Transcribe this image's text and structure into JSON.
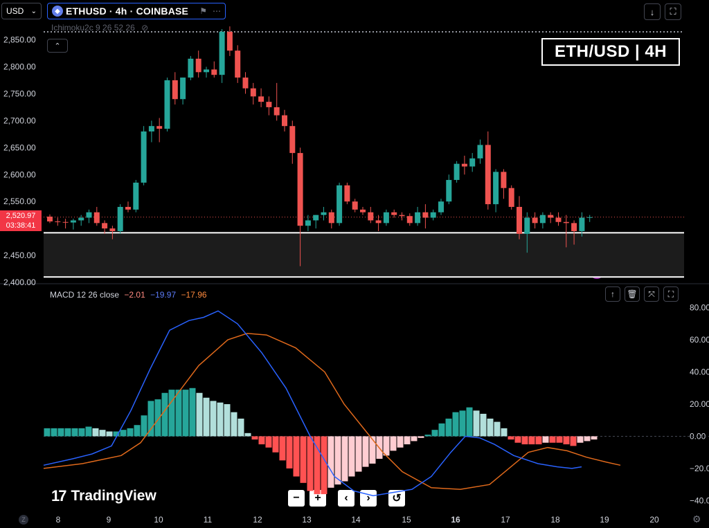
{
  "header": {
    "currency_label": "USD",
    "symbol": "ETHUSD · 4h · COINBASE",
    "indicator_label": "Ichimoku2c 9 26 52 26",
    "chart_title": "ETH/USD | 4H"
  },
  "macd_legend": {
    "name": "MACD 12 26 close",
    "hist": "−2.01",
    "macd": "−19.97",
    "signal": "−17.96"
  },
  "price_tag": {
    "value": "2,520.97",
    "countdown": "03:38:41"
  },
  "brand": "TradingView",
  "nav_buttons": [
    "−",
    "+",
    "‹",
    "›",
    "↺"
  ],
  "colors": {
    "up": "#26a69a",
    "down": "#ef5350",
    "macd_line": "#2962ff",
    "signal_line": "#e0691b",
    "hist_up_strong": "#26a69a",
    "hist_up_weak": "#b2dfdb",
    "hist_down_strong": "#ff5252",
    "hist_down_weak": "#ffcdd2"
  },
  "chart_data": [
    {
      "type": "candlestick",
      "title": "ETH/USD | 4H",
      "ylim": [
        2400,
        2870
      ],
      "y_ticks": [
        "2,850.00",
        "2,800.00",
        "2,750.00",
        "2,700.00",
        "2,650.00",
        "2,600.00",
        "2,550.00",
        "2,450.00",
        "2,400.00"
      ],
      "y_tick_values": [
        2850,
        2800,
        2750,
        2700,
        2650,
        2600,
        2550,
        2450,
        2400
      ],
      "x_labels": [
        "8",
        "9",
        "10",
        "11",
        "12",
        "13",
        "14",
        "15",
        "16",
        "17",
        "18",
        "19",
        "20"
      ],
      "support_zone": [
        2410,
        2492
      ],
      "candles": [
        [
          2522,
          2526,
          2510,
          2513
        ],
        [
          2513,
          2520,
          2505,
          2512
        ],
        [
          2512,
          2518,
          2500,
          2511
        ],
        [
          2511,
          2518,
          2498,
          2515
        ],
        [
          2515,
          2525,
          2505,
          2520
        ],
        [
          2520,
          2535,
          2510,
          2530
        ],
        [
          2530,
          2540,
          2505,
          2510
        ],
        [
          2510,
          2515,
          2490,
          2500
        ],
        [
          2500,
          2505,
          2480,
          2495
        ],
        [
          2495,
          2545,
          2490,
          2540
        ],
        [
          2540,
          2550,
          2530,
          2535
        ],
        [
          2535,
          2590,
          2530,
          2585
        ],
        [
          2585,
          2690,
          2580,
          2680
        ],
        [
          2680,
          2700,
          2660,
          2690
        ],
        [
          2690,
          2705,
          2660,
          2685
        ],
        [
          2685,
          2780,
          2680,
          2775
        ],
        [
          2775,
          2790,
          2730,
          2740
        ],
        [
          2740,
          2780,
          2730,
          2780
        ],
        [
          2780,
          2820,
          2775,
          2815
        ],
        [
          2815,
          2830,
          2780,
          2790
        ],
        [
          2790,
          2800,
          2780,
          2795
        ],
        [
          2795,
          2810,
          2780,
          2785
        ],
        [
          2785,
          2870,
          2770,
          2865
        ],
        [
          2865,
          2875,
          2820,
          2830
        ],
        [
          2830,
          2840,
          2770,
          2780
        ],
        [
          2780,
          2790,
          2750,
          2760
        ],
        [
          2760,
          2770,
          2730,
          2745
        ],
        [
          2745,
          2760,
          2725,
          2735
        ],
        [
          2735,
          2745,
          2710,
          2725
        ],
        [
          2725,
          2770,
          2700,
          2710
        ],
        [
          2710,
          2720,
          2680,
          2690
        ],
        [
          2690,
          2700,
          2620,
          2640
        ],
        [
          2640,
          2650,
          2430,
          2505
        ],
        [
          2505,
          2525,
          2495,
          2515
        ],
        [
          2515,
          2525,
          2500,
          2525
        ],
        [
          2525,
          2540,
          2515,
          2530
        ],
        [
          2530,
          2535,
          2500,
          2510
        ],
        [
          2510,
          2585,
          2505,
          2580
        ],
        [
          2580,
          2585,
          2545,
          2550
        ],
        [
          2550,
          2555,
          2530,
          2535
        ],
        [
          2535,
          2540,
          2525,
          2530
        ],
        [
          2530,
          2540,
          2510,
          2515
        ],
        [
          2515,
          2525,
          2495,
          2510
        ],
        [
          2510,
          2535,
          2505,
          2530
        ],
        [
          2530,
          2535,
          2520,
          2525
        ],
        [
          2525,
          2530,
          2515,
          2523
        ],
        [
          2523,
          2528,
          2505,
          2510
        ],
        [
          2510,
          2540,
          2505,
          2530
        ],
        [
          2530,
          2545,
          2500,
          2520
        ],
        [
          2520,
          2535,
          2515,
          2530
        ],
        [
          2530,
          2555,
          2525,
          2550
        ],
        [
          2550,
          2600,
          2545,
          2590
        ],
        [
          2590,
          2625,
          2585,
          2620
        ],
        [
          2620,
          2635,
          2600,
          2615
        ],
        [
          2615,
          2640,
          2605,
          2630
        ],
        [
          2630,
          2665,
          2620,
          2655
        ],
        [
          2655,
          2680,
          2535,
          2545
        ],
        [
          2545,
          2610,
          2530,
          2605
        ],
        [
          2605,
          2610,
          2555,
          2575
        ],
        [
          2575,
          2580,
          2535,
          2540
        ],
        [
          2540,
          2560,
          2480,
          2490
        ],
        [
          2490,
          2530,
          2455,
          2520
        ],
        [
          2520,
          2530,
          2500,
          2510
        ],
        [
          2510,
          2530,
          2500,
          2525
        ],
        [
          2525,
          2530,
          2510,
          2520
        ],
        [
          2520,
          2530,
          2505,
          2512
        ],
        [
          2512,
          2525,
          2465,
          2510
        ],
        [
          2510,
          2515,
          2470,
          2495
        ],
        [
          2495,
          2530,
          2485,
          2520
        ],
        [
          2520,
          2525,
          2512,
          2521
        ]
      ],
      "current_price": 2520.97
    },
    {
      "type": "macd",
      "title": "MACD 12 26 close",
      "ylim": [
        -45,
        82
      ],
      "y_ticks": [
        "80.00",
        "60.00",
        "40.00",
        "20.00",
        "0.00",
        "−20.00",
        "−40.00"
      ],
      "y_tick_values": [
        80,
        60,
        40,
        20,
        0,
        -20,
        -40
      ],
      "histogram": [
        5,
        5,
        5,
        5,
        5,
        5,
        6,
        5,
        4,
        3,
        3,
        4,
        5,
        7,
        13,
        22,
        23,
        27,
        29,
        29,
        29,
        30,
        27,
        24,
        22,
        21,
        20,
        15,
        11,
        2,
        -2,
        -5,
        -7,
        -10,
        -15,
        -20,
        -25,
        -29,
        -34,
        -36,
        -36,
        -32,
        -30,
        -28,
        -25,
        -22,
        -19,
        -17,
        -14,
        -12,
        -9,
        -7,
        -5,
        -3,
        -1,
        1,
        4,
        8,
        11,
        15,
        16,
        18,
        16,
        14,
        11,
        9,
        5,
        -2,
        -4,
        -5,
        -5,
        -5,
        -4,
        -4,
        -4,
        -5,
        -6,
        -4,
        -3,
        -2
      ],
      "hist_x_index_offset": 0,
      "macd_line": [
        [
          0,
          -18
        ],
        [
          6,
          -14
        ],
        [
          10,
          -11
        ],
        [
          14,
          -6
        ],
        [
          18,
          16
        ],
        [
          22,
          42
        ],
        [
          26,
          66
        ],
        [
          30,
          72
        ],
        [
          33,
          74
        ],
        [
          36,
          78
        ],
        [
          40,
          70
        ],
        [
          45,
          52
        ],
        [
          50,
          30
        ],
        [
          55,
          0
        ],
        [
          60,
          -25
        ],
        [
          64,
          -34
        ],
        [
          68,
          -37
        ],
        [
          72,
          -35
        ],
        [
          76,
          -33
        ],
        [
          80,
          -25
        ],
        [
          84,
          -10
        ],
        [
          87,
          0
        ],
        [
          90,
          -1
        ],
        [
          93,
          -5
        ],
        [
          97,
          -12
        ],
        [
          102,
          -17
        ],
        [
          106,
          -19
        ],
        [
          109,
          -20
        ],
        [
          111,
          -19
        ]
      ],
      "signal_line": [
        [
          0,
          -20
        ],
        [
          8,
          -17
        ],
        [
          16,
          -12
        ],
        [
          20,
          -4
        ],
        [
          26,
          20
        ],
        [
          32,
          44
        ],
        [
          38,
          60
        ],
        [
          42,
          64
        ],
        [
          46,
          63
        ],
        [
          52,
          55
        ],
        [
          58,
          40
        ],
        [
          62,
          20
        ],
        [
          66,
          5
        ],
        [
          70,
          -10
        ],
        [
          74,
          -22
        ],
        [
          80,
          -32
        ],
        [
          86,
          -33
        ],
        [
          92,
          -30
        ],
        [
          96,
          -20
        ],
        [
          100,
          -10
        ],
        [
          104,
          -7
        ],
        [
          108,
          -9
        ],
        [
          112,
          -13
        ],
        [
          116,
          -16
        ],
        [
          119,
          -18
        ]
      ]
    }
  ]
}
